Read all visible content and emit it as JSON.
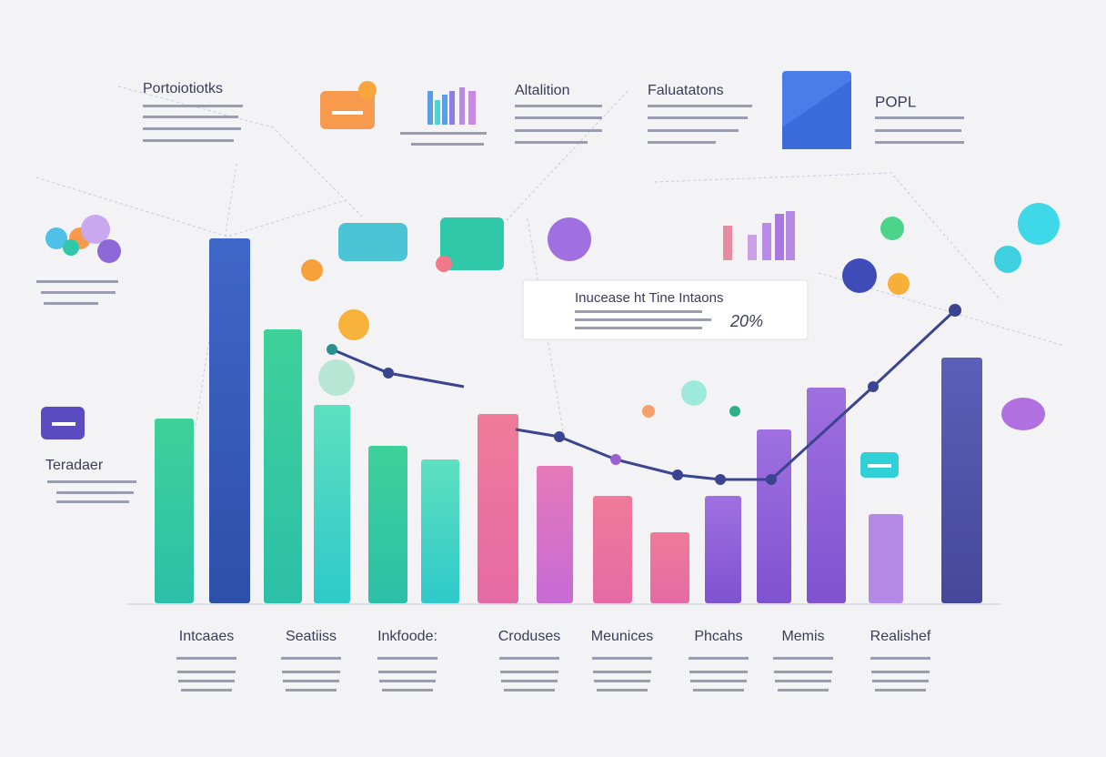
{
  "header": {
    "labels": [
      "Portoiotiotks",
      "Altalition",
      "Faluatatons",
      "POPL"
    ]
  },
  "side_label": "Teradaer",
  "callout": {
    "title": "Inucease ht Tine Intaons",
    "figure": "20%"
  },
  "footer": {
    "labels": [
      "Intcaaes",
      "Seatiiss",
      "Inkfoode:",
      "Croduses",
      "Meunices",
      "Phcahs",
      "Memis",
      "Realishef"
    ]
  }
}
